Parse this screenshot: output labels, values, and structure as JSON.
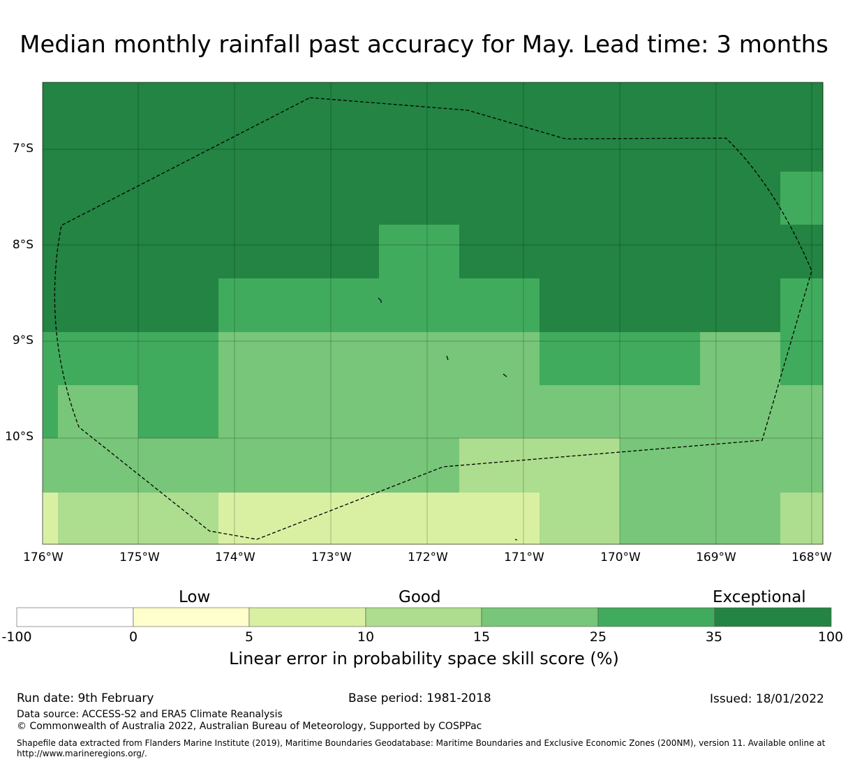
{
  "title": "Median monthly rainfall past accuracy for May. Lead time: 3 months",
  "map": {
    "lat_labels": [
      "7°S",
      "8°S",
      "9°S",
      "10°S"
    ],
    "lon_labels": [
      "176°W",
      "175°W",
      "174°W",
      "173°W",
      "172°W",
      "171°W",
      "170°W",
      "169°W",
      "168°W"
    ],
    "boundary_style": "dashed",
    "description_grid_note": "skill score category per grid cell"
  },
  "colorbar": {
    "categories": [
      "Low",
      "Good",
      "Exceptional"
    ],
    "ticks": [
      "-100",
      "0",
      "5",
      "10",
      "15",
      "25",
      "35",
      "100"
    ],
    "colors": [
      "#ffffff",
      "#ffffcc",
      "#d9f0a3",
      "#addd8e",
      "#78c679",
      "#41ab5d",
      "#238443"
    ],
    "label": "Linear error in probability space skill score (%)"
  },
  "footer": {
    "run_date": "Run date: 9th February",
    "base_period": "Base period: 1981-2018",
    "issued": "Issued: 18/01/2022",
    "data_source": "Data source: ACCESS-S2 and ERA5 Climate Reanalysis",
    "copyright": "© Commonwealth of Australia 2022, Australian Bureau of Meteorology, Supported by COSPPac",
    "shapefile_line1": "Shapefile data extracted from Flanders Marine Institute (2019), Maritime Boundaries Geodatabase: Maritime Boundaries and Exclusive Economic Zones (200NM), version 11. Available online at",
    "shapefile_line2": "http://www.marineregions.org/."
  }
}
